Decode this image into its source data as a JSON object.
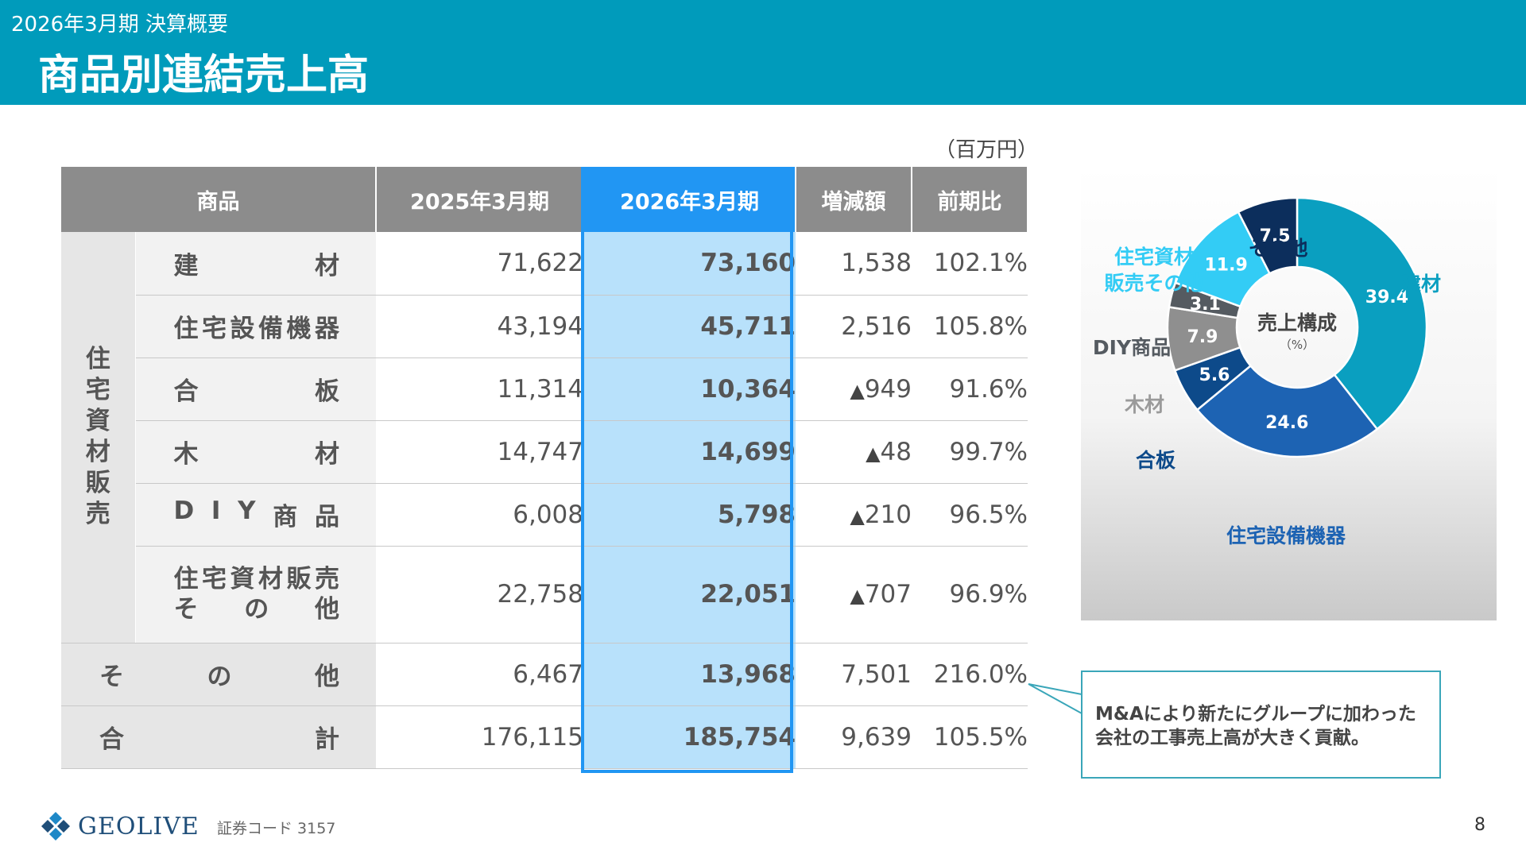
{
  "header": {
    "subtitle": "2026年3月期 決算概要",
    "title": "商品別連結売上高"
  },
  "unit": "（百万円）",
  "table": {
    "headers": {
      "product": "商品",
      "prev": "2025年3月期",
      "cur": "2026年3月期",
      "change": "増減額",
      "ratio": "前期比"
    },
    "group_label": "住宅資材販売",
    "rows": [
      {
        "name": "建材",
        "prev": "71,622",
        "cur": "73,160",
        "change": "1,538",
        "ratio": "102.1%"
      },
      {
        "name": "住宅設備機器",
        "prev": "43,194",
        "cur": "45,711",
        "change": "2,516",
        "ratio": "105.8%"
      },
      {
        "name": "合板",
        "prev": "11,314",
        "cur": "10,364",
        "change": "949",
        "ratio": "91.6%"
      },
      {
        "name": "木材",
        "prev": "14,747",
        "cur": "14,699",
        "change": "48",
        "ratio": "99.7%"
      },
      {
        "name": "DIY商品",
        "prev": "6,008",
        "cur": "5,798",
        "change": "210",
        "ratio": "96.5%"
      },
      {
        "name_line1": "住宅資材販売",
        "name_line2": "その他",
        "prev": "22,758",
        "cur": "22,051",
        "change": "707",
        "ratio": "96.9%"
      },
      {
        "name": "その他",
        "prev": "6,467",
        "cur": "13,968",
        "change": "7,501",
        "ratio": "216.0%"
      },
      {
        "name": "合計",
        "prev": "176,115",
        "cur": "185,754",
        "change": "9,639",
        "ratio": "105.5%"
      }
    ],
    "decrease_mark": "▲"
  },
  "callout": {
    "line1": "M&Aにより新たにグループに加わった",
    "line2": "会社の工事売上高が大きく貢献。"
  },
  "chart_data": {
    "type": "pie",
    "title": "売上構成",
    "subtitle": "（%）",
    "slices": [
      {
        "label": "建材",
        "value": 39.4,
        "color": "#0a9fc0",
        "label_color": "#0a9fc0"
      },
      {
        "label": "住宅設備機器",
        "value": 24.6,
        "color": "#1d63b3",
        "label_color": "#1d63b3"
      },
      {
        "label": "合板",
        "value": 5.6,
        "color": "#0d4a8a",
        "label_color": "#0d4a8a"
      },
      {
        "label": "木材",
        "value": 7.9,
        "color": "#8f8f8f",
        "label_color": "#9a9a9a"
      },
      {
        "label": "DIY商品",
        "value": 3.1,
        "color": "#555b61",
        "label_color": "#555b61"
      },
      {
        "label": "住宅資材販売その他",
        "label_line1": "住宅資材",
        "label_line2": "販売その他",
        "value": 11.9,
        "color": "#33ccf5",
        "label_color": "#33ccf5"
      },
      {
        "label": "その他",
        "value": 7.5,
        "color": "#0c2e5c",
        "label_color": "#0c2e5c"
      }
    ]
  },
  "footer": {
    "logo": "GEOLIVE",
    "code": "証券コード 3157",
    "page": "8"
  }
}
